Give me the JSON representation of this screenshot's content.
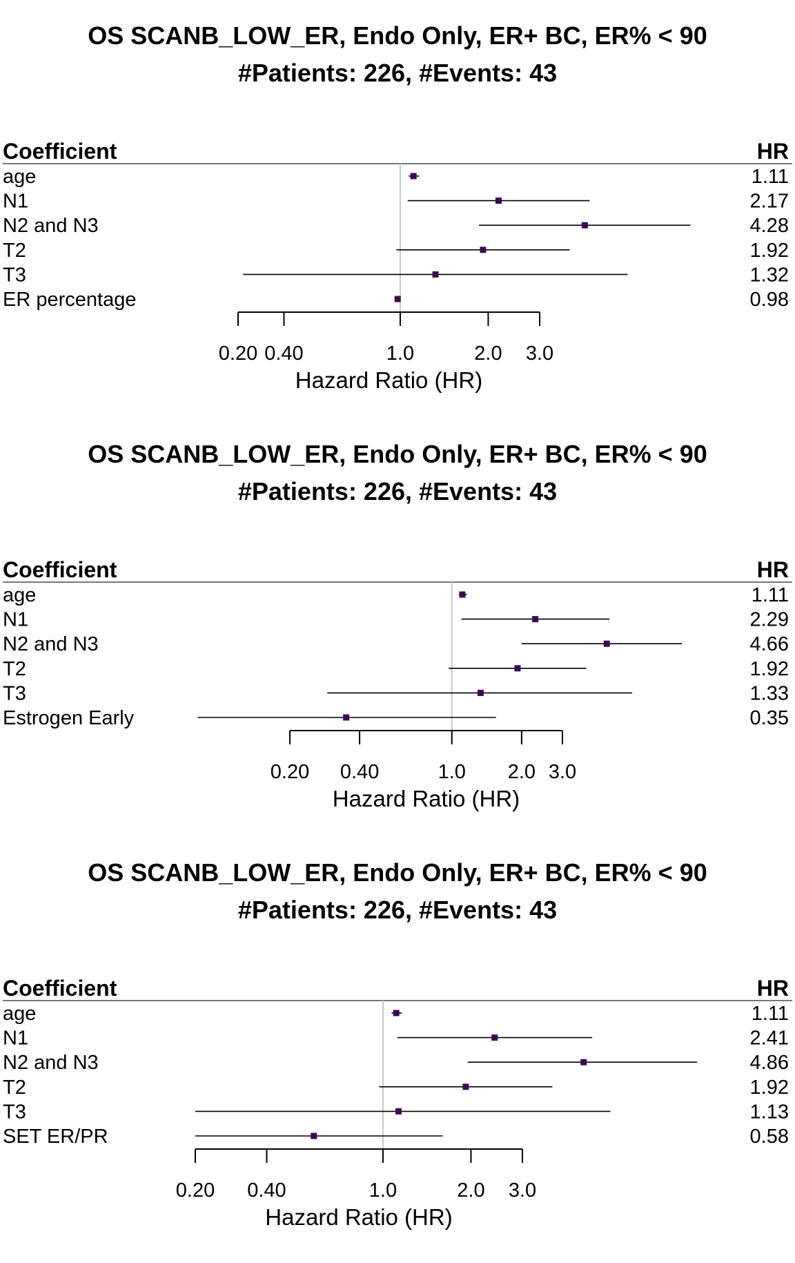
{
  "chart_data": [
    {
      "type": "forest",
      "title": "OS SCANB_LOW_ER, Endo Only, ER+ BC, ER% < 90",
      "subtitle": "#Patients: 226, #Events: 43",
      "coef_header": "Coefficient",
      "hr_header": "HR",
      "xlabel": "Hazard Ratio (HR)",
      "x_scale": "log",
      "x_ticks": [
        0.2,
        0.4,
        1.0,
        2.0,
        3.0
      ],
      "x_tick_labels": [
        "0.20",
        "0.40",
        "1.0",
        "2.0",
        "3.0"
      ],
      "reference_line": 1.0,
      "xlim": [
        0.2,
        3.0
      ],
      "rows": [
        {
          "label": "age",
          "hr": 1.11,
          "hr_text": "1.11",
          "lower": 1.07,
          "upper": 1.16
        },
        {
          "label": "N1",
          "hr": 2.17,
          "hr_text": "2.17",
          "lower": 1.06,
          "upper": 4.45
        },
        {
          "label": "N2 and N3",
          "hr": 4.28,
          "hr_text": "4.28",
          "lower": 1.86,
          "upper": 9.84
        },
        {
          "label": "T2",
          "hr": 1.92,
          "hr_text": "1.92",
          "lower": 0.97,
          "upper": 3.8
        },
        {
          "label": "T3",
          "hr": 1.32,
          "hr_text": "1.32",
          "lower": 0.29,
          "upper": 6.0
        },
        {
          "label": "ER percentage",
          "hr": 0.98,
          "hr_text": "0.98",
          "lower": 0.965,
          "upper": 0.995
        }
      ]
    },
    {
      "type": "forest",
      "title": "OS SCANB_LOW_ER, Endo Only, ER+ BC, ER% < 90",
      "subtitle": "#Patients: 226, #Events: 43",
      "coef_header": "Coefficient",
      "hr_header": "HR",
      "xlabel": "Hazard Ratio (HR)",
      "x_scale": "log",
      "x_ticks": [
        0.2,
        0.4,
        1.0,
        2.0,
        3.0
      ],
      "x_tick_labels": [
        "0.20",
        "0.40",
        "1.0",
        "2.0",
        "3.0"
      ],
      "reference_line": 1.0,
      "xlim": [
        0.2,
        3.0
      ],
      "rows": [
        {
          "label": "age",
          "hr": 1.11,
          "hr_text": "1.11",
          "lower": 1.07,
          "upper": 1.16
        },
        {
          "label": "N1",
          "hr": 2.29,
          "hr_text": "2.29",
          "lower": 1.1,
          "upper": 4.79
        },
        {
          "label": "N2 and N3",
          "hr": 4.66,
          "hr_text": "4.66",
          "lower": 2.0,
          "upper": 9.84
        },
        {
          "label": "T2",
          "hr": 1.92,
          "hr_text": "1.92",
          "lower": 0.97,
          "upper": 3.8
        },
        {
          "label": "T3",
          "hr": 1.33,
          "hr_text": "1.33",
          "lower": 0.29,
          "upper": 6.0
        },
        {
          "label": "Estrogen Early",
          "hr": 0.35,
          "hr_text": "0.35",
          "lower": 0.08,
          "upper": 1.55
        }
      ]
    },
    {
      "type": "forest",
      "title": "OS SCANB_LOW_ER, Endo Only, ER+ BC, ER% < 90",
      "subtitle": "#Patients: 226, #Events: 43",
      "coef_header": "Coefficient",
      "hr_header": "HR",
      "xlabel": "Hazard Ratio (HR)",
      "x_scale": "log",
      "x_ticks": [
        0.2,
        0.4,
        1.0,
        2.0,
        3.0
      ],
      "x_tick_labels": [
        "0.20",
        "0.40",
        "1.0",
        "2.0",
        "3.0"
      ],
      "reference_line": 1.0,
      "xlim": [
        0.2,
        3.0
      ],
      "rows": [
        {
          "label": "age",
          "hr": 1.11,
          "hr_text": "1.11",
          "lower": 1.07,
          "upper": 1.16
        },
        {
          "label": "N1",
          "hr": 2.41,
          "hr_text": "2.41",
          "lower": 1.12,
          "upper": 5.2
        },
        {
          "label": "N2 and N3",
          "hr": 4.86,
          "hr_text": "4.86",
          "lower": 1.95,
          "upper": 12.1
        },
        {
          "label": "T2",
          "hr": 1.92,
          "hr_text": "1.92",
          "lower": 0.97,
          "upper": 3.8
        },
        {
          "label": "T3",
          "hr": 1.13,
          "hr_text": "1.13",
          "lower": 0.2,
          "upper": 6.0
        },
        {
          "label": "SET ER/PR",
          "hr": 0.58,
          "hr_text": "0.58",
          "lower": 0.21,
          "upper": 1.6
        }
      ]
    }
  ],
  "colors": {
    "point": "#3b0b4f",
    "ci_line": "#000000",
    "reference": "#c8c8c8",
    "header_rule": "#777777",
    "text": "#000000"
  }
}
